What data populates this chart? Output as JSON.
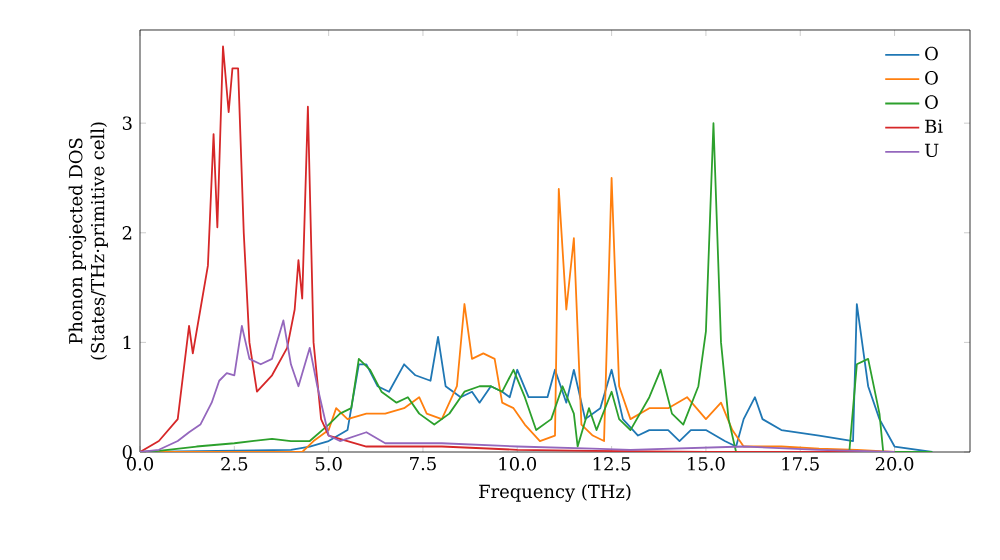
{
  "chart_data": {
    "type": "line",
    "xlabel": "Frequency (THz)",
    "ylabel": "Phonon projected DOS\n(States/THz·primitive cell)",
    "xlim": [
      0,
      22
    ],
    "ylim": [
      0,
      3.85
    ],
    "xticks": [
      {
        "value": 0,
        "label": "0.0"
      },
      {
        "value": 2.5,
        "label": "2.5"
      },
      {
        "value": 5,
        "label": "5.0"
      },
      {
        "value": 7.5,
        "label": "7.5"
      },
      {
        "value": 10,
        "label": "10.0"
      },
      {
        "value": 12.5,
        "label": "12.5"
      },
      {
        "value": 15,
        "label": "15.0"
      },
      {
        "value": 17.5,
        "label": "17.5"
      },
      {
        "value": 20,
        "label": "20.0"
      }
    ],
    "yticks": [
      0,
      1,
      2,
      3
    ],
    "legend": "top right",
    "grid": false,
    "marker": "none",
    "line_style": "solid",
    "series": [
      {
        "name": "O",
        "color": "#1f77b4",
        "x": [
          0,
          4,
          4.5,
          5.0,
          5.5,
          5.8,
          6.0,
          6.3,
          6.6,
          7.0,
          7.3,
          7.7,
          7.9,
          8.1,
          8.5,
          8.8,
          9.0,
          9.3,
          9.6,
          9.8,
          10.0,
          10.3,
          10.8,
          11.0,
          11.3,
          11.5,
          11.8,
          12.2,
          12.5,
          12.8,
          13.2,
          13.5,
          14,
          14.3,
          14.6,
          15,
          15.5,
          15.8,
          16.0,
          16.3,
          16.5,
          17,
          18,
          18.9,
          19.0,
          19.3,
          19.6,
          20,
          21
        ],
        "values": [
          0,
          0.02,
          0.05,
          0.1,
          0.2,
          0.8,
          0.8,
          0.6,
          0.55,
          0.8,
          0.7,
          0.65,
          1.05,
          0.6,
          0.5,
          0.55,
          0.45,
          0.6,
          0.55,
          0.5,
          0.75,
          0.5,
          0.5,
          0.75,
          0.45,
          0.75,
          0.3,
          0.4,
          0.75,
          0.3,
          0.15,
          0.2,
          0.2,
          0.1,
          0.2,
          0.2,
          0.1,
          0.05,
          0.3,
          0.5,
          0.3,
          0.2,
          0.15,
          0.1,
          1.35,
          0.6,
          0.3,
          0.05,
          0
        ]
      },
      {
        "name": "O",
        "color": "#ff7f0e",
        "x": [
          0,
          4.3,
          4.6,
          5.0,
          5.2,
          5.5,
          6.0,
          6.5,
          7.0,
          7.4,
          7.6,
          8.0,
          8.4,
          8.6,
          8.8,
          9.1,
          9.4,
          9.6,
          9.9,
          10.2,
          10.6,
          11.0,
          11.1,
          11.3,
          11.5,
          11.7,
          12.0,
          12.3,
          12.5,
          12.7,
          13,
          13.5,
          14,
          14.5,
          15,
          15.4,
          15.7,
          16.0,
          17,
          18,
          19,
          20
        ],
        "values": [
          0,
          0,
          0.1,
          0.2,
          0.4,
          0.3,
          0.35,
          0.35,
          0.4,
          0.5,
          0.35,
          0.3,
          0.6,
          1.35,
          0.85,
          0.9,
          0.85,
          0.45,
          0.4,
          0.25,
          0.1,
          0.15,
          2.4,
          1.3,
          1.95,
          0.25,
          0.15,
          0.1,
          2.5,
          0.6,
          0.3,
          0.4,
          0.4,
          0.5,
          0.3,
          0.45,
          0.2,
          0.05,
          0.05,
          0.03,
          0.02,
          0
        ]
      },
      {
        "name": "O",
        "color": "#2ca02c",
        "x": [
          0,
          0.5,
          1.5,
          2.5,
          3.5,
          4.0,
          4.5,
          5.0,
          5.3,
          5.6,
          5.8,
          6.1,
          6.4,
          6.8,
          7.1,
          7.4,
          7.8,
          8.2,
          8.6,
          9.0,
          9.3,
          9.6,
          9.9,
          10.2,
          10.5,
          10.9,
          11.2,
          11.5,
          11.6,
          11.9,
          12.1,
          12.5,
          12.7,
          13.0,
          13.5,
          13.8,
          14.1,
          14.4,
          14.8,
          15.0,
          15.2,
          15.4,
          15.6,
          15.8,
          18.8,
          19.0,
          19.3,
          19.6,
          19.7,
          21
        ],
        "values": [
          0,
          0.01,
          0.05,
          0.08,
          0.12,
          0.1,
          0.1,
          0.25,
          0.35,
          0.4,
          0.85,
          0.75,
          0.55,
          0.45,
          0.5,
          0.35,
          0.25,
          0.35,
          0.55,
          0.6,
          0.6,
          0.55,
          0.75,
          0.5,
          0.2,
          0.3,
          0.6,
          0.35,
          0.05,
          0.4,
          0.2,
          0.55,
          0.3,
          0.2,
          0.5,
          0.75,
          0.35,
          0.25,
          0.6,
          1.1,
          3.0,
          1.0,
          0.3,
          0,
          0,
          0.8,
          0.85,
          0.35,
          0,
          0
        ]
      },
      {
        "name": "Bi",
        "color": "#d62728",
        "x": [
          0,
          0.5,
          1.0,
          1.3,
          1.4,
          1.6,
          1.8,
          1.95,
          2.05,
          2.2,
          2.35,
          2.45,
          2.6,
          2.75,
          2.9,
          3.1,
          3.5,
          3.9,
          4.1,
          4.2,
          4.3,
          4.45,
          4.6,
          4.8,
          5.0,
          5.5,
          6,
          8,
          10,
          12,
          15,
          20
        ],
        "values": [
          0,
          0.1,
          0.3,
          1.15,
          0.9,
          1.3,
          1.7,
          2.9,
          2.05,
          3.7,
          3.1,
          3.5,
          3.5,
          2.0,
          1.0,
          0.55,
          0.7,
          0.95,
          1.3,
          1.75,
          1.4,
          3.15,
          1.0,
          0.3,
          0.15,
          0.1,
          0.05,
          0.05,
          0.02,
          0.01,
          0,
          0
        ]
      },
      {
        "name": "U",
        "color": "#9467bd",
        "x": [
          0,
          0.5,
          1.0,
          1.3,
          1.6,
          1.9,
          2.1,
          2.3,
          2.5,
          2.7,
          2.9,
          3.2,
          3.5,
          3.8,
          4.0,
          4.2,
          4.5,
          4.7,
          5.0,
          5.3,
          6,
          6.5,
          8,
          10,
          12,
          13,
          16,
          18,
          20
        ],
        "values": [
          0,
          0.02,
          0.1,
          0.18,
          0.25,
          0.45,
          0.65,
          0.72,
          0.7,
          1.15,
          0.85,
          0.8,
          0.85,
          1.2,
          0.8,
          0.6,
          0.95,
          0.6,
          0.15,
          0.1,
          0.18,
          0.08,
          0.08,
          0.05,
          0.03,
          0.02,
          0.05,
          0.02,
          0
        ]
      }
    ]
  }
}
